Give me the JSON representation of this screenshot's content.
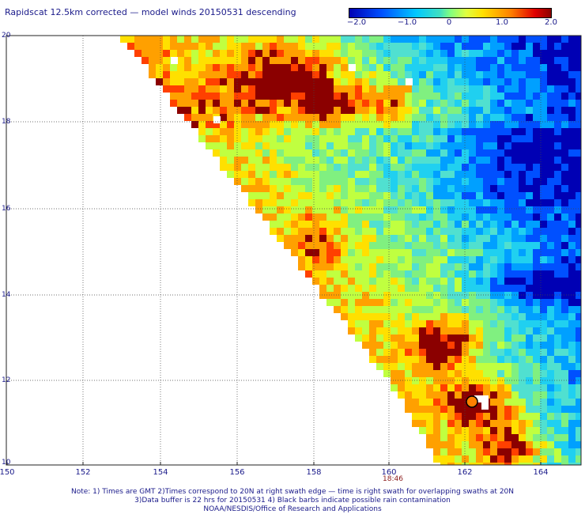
{
  "title": "Rapidscat 12.5km corrected — model winds 20150531 descending",
  "colorbar": {
    "ticks": [
      {
        "value": -2.0,
        "label": "−2.0"
      },
      {
        "value": -1.0,
        "label": "−1.0"
      },
      {
        "value": 0,
        "label": "0"
      },
      {
        "value": 1.0,
        "label": "1.0"
      },
      {
        "value": 2.0,
        "label": "2.0"
      }
    ]
  },
  "map": {
    "lon_labels": [
      "150",
      "152",
      "154",
      "156",
      "158",
      "160",
      "162",
      "164"
    ],
    "lat_labels": [
      "20",
      "18",
      "16",
      "14",
      "12",
      "10"
    ],
    "lon_range": [
      150,
      165
    ],
    "lat_range": [
      10,
      20
    ],
    "time_label": "18:46",
    "time_label_lon": 160,
    "swath_edge": "diagonal from 153N20 to 160.4N12",
    "colors": {
      "dark_red": "#8b0000",
      "red": "#e00000",
      "orange": "#ff8000",
      "yellow": "#ffe000",
      "green": "#80ff80",
      "cyan": "#40d0e0",
      "blue": "#0050ff"
    }
  },
  "notes": [
    "Note: 1) Times are GMT 2)Times correspond to 20N at right swath edge — time is right swath for overlapping swaths at 20N",
    "3)Data buffer is 22 hrs for 20150531 4) Black barbs indicate possible rain contamination",
    "NOAA/NESDIS/Office of Research and Applications"
  ]
}
